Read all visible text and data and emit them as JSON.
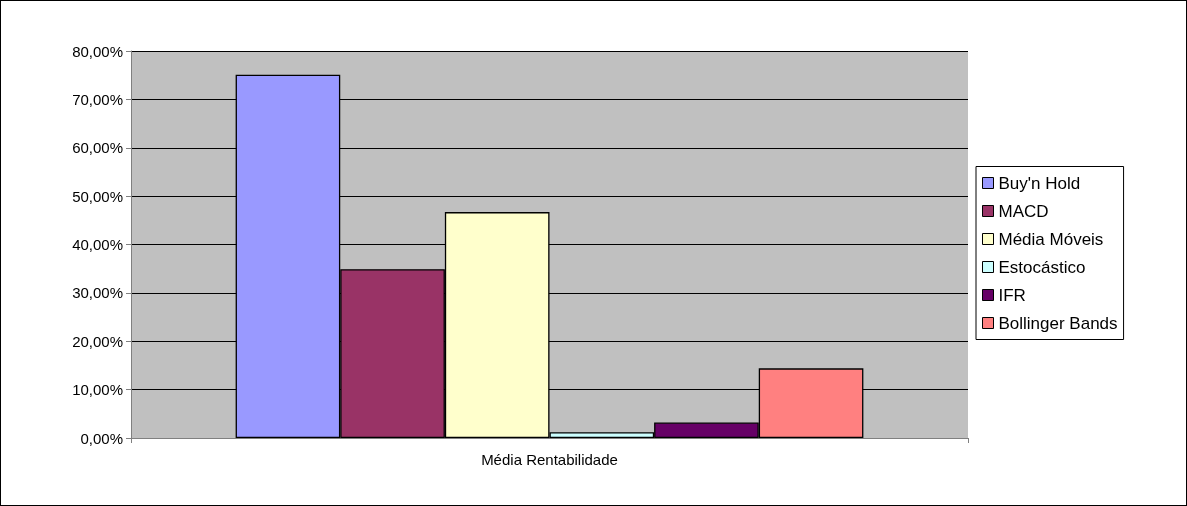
{
  "chart_data": {
    "type": "bar",
    "categories": [
      "Média Rentabilidade"
    ],
    "series": [
      {
        "name": "Buy'n Hold",
        "color": "#9999ff",
        "values": [
          75.1
        ]
      },
      {
        "name": "MACD",
        "color": "#993366",
        "values": [
          34.9
        ]
      },
      {
        "name": "Média Móveis",
        "color": "#ffffcc",
        "values": [
          46.7
        ]
      },
      {
        "name": "Estocástico",
        "color": "#ccffff",
        "values": [
          1.2
        ]
      },
      {
        "name": "IFR",
        "color": "#660066",
        "values": [
          3.2
        ]
      },
      {
        "name": "Bollinger Bands",
        "color": "#ff8080",
        "values": [
          14.4
        ]
      }
    ],
    "ylim": [
      0,
      80
    ],
    "yticks": [
      {
        "value": 0,
        "label": "0,00%"
      },
      {
        "value": 10,
        "label": "10,00%"
      },
      {
        "value": 20,
        "label": "20,00%"
      },
      {
        "value": 30,
        "label": "30,00%"
      },
      {
        "value": 40,
        "label": "40,00%"
      },
      {
        "value": 50,
        "label": "50,00%"
      },
      {
        "value": 60,
        "label": "60,00%"
      },
      {
        "value": 70,
        "label": "70,00%"
      },
      {
        "value": 80,
        "label": "80,00%"
      }
    ],
    "grid": "y",
    "legend": "right"
  }
}
